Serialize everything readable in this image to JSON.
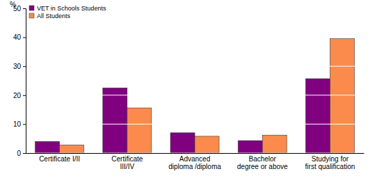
{
  "chart_data": {
    "type": "bar",
    "y_label": "%",
    "categories": [
      "Certificate I/II",
      "Certificate III/IV",
      "Advanced diploma /diploma",
      "Bachelor degree or above",
      "Studying for first qualification"
    ],
    "series": [
      {
        "name": "VET in Schools Students",
        "color": "#800080",
        "values": [
          4.0,
          22.5,
          7.0,
          4.3,
          25.7
        ]
      },
      {
        "name": "All Students",
        "color": "#fa8b4d",
        "values": [
          2.8,
          15.6,
          5.8,
          6.2,
          39.5
        ]
      }
    ],
    "ylim": [
      0,
      50
    ],
    "yticks": [
      0,
      10,
      20,
      30,
      40,
      50
    ],
    "grid": true,
    "legend": "top-left"
  }
}
